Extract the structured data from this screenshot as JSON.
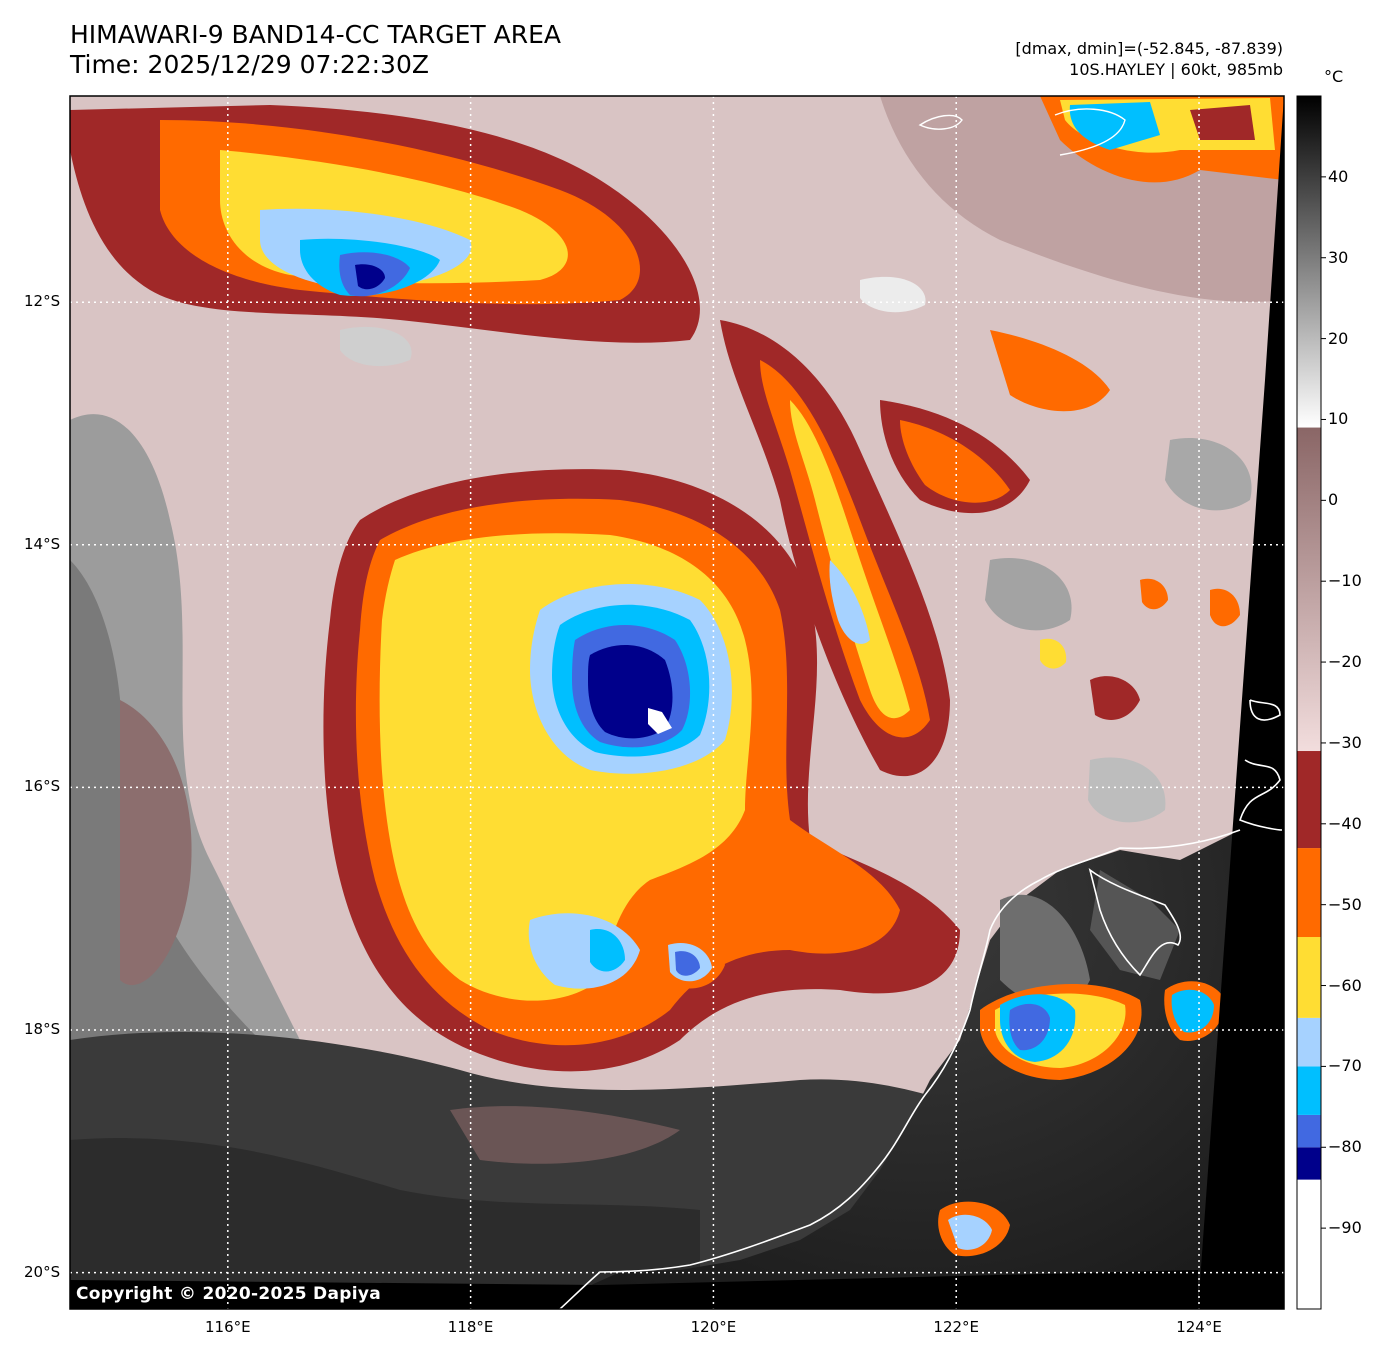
{
  "header": {
    "title_line1": "HIMAWARI-9 BAND14-CC TARGET AREA",
    "title_line2": "Time: 2025/12/29 07:22:30Z",
    "range_info": "[dmax, dmin]=(-52.845, -87.839)",
    "storm_info": "10S.HAYLEY | 60kt, 985mb"
  },
  "map": {
    "lat_labels": [
      "12°S",
      "14°S",
      "16°S",
      "18°S",
      "20°S"
    ],
    "lon_labels": [
      "116°E",
      "118°E",
      "120°E",
      "122°E",
      "124°E"
    ],
    "lat_values": [
      -12,
      -14,
      -16,
      -18,
      -20
    ],
    "lon_values": [
      116,
      118,
      120,
      122,
      124
    ],
    "lon_range": [
      114.7,
      124.7
    ],
    "lat_range": [
      -10.3,
      -20.3
    ],
    "storm_center": {
      "lon": 119.3,
      "lat": -15.2
    },
    "copyright": "Copyright © 2020-2025 Dapiya"
  },
  "colorbar": {
    "unit": "°C",
    "ticks": [
      "40",
      "30",
      "20",
      "10",
      "0",
      "−10",
      "−20",
      "−30",
      "−40",
      "−50",
      "−60",
      "−70",
      "−80",
      "−90"
    ],
    "tick_values": [
      40,
      30,
      20,
      10,
      0,
      -10,
      -20,
      -30,
      -40,
      -50,
      -60,
      -70,
      -80,
      -90
    ],
    "range": [
      -100,
      50
    ],
    "bands": [
      {
        "from": -100,
        "to": -84,
        "color": "#ffffff"
      },
      {
        "from": -84,
        "to": -80,
        "color": "#00008b"
      },
      {
        "from": -80,
        "to": -76,
        "color": "#4169e1"
      },
      {
        "from": -76,
        "to": -70,
        "color": "#00bfff"
      },
      {
        "from": -70,
        "to": -64,
        "color": "#a6d2ff"
      },
      {
        "from": -64,
        "to": -54,
        "color": "#ffdd33"
      },
      {
        "from": -54,
        "to": -43,
        "color": "#ff6a00"
      },
      {
        "from": -43,
        "to": -31,
        "color": "#a02828"
      }
    ],
    "gradient_colors": {
      "warm_black": "#000000",
      "warm_white": "#ffffff",
      "mid_top": "#8a6666",
      "mid_bottom": "#f2dddd"
    }
  }
}
